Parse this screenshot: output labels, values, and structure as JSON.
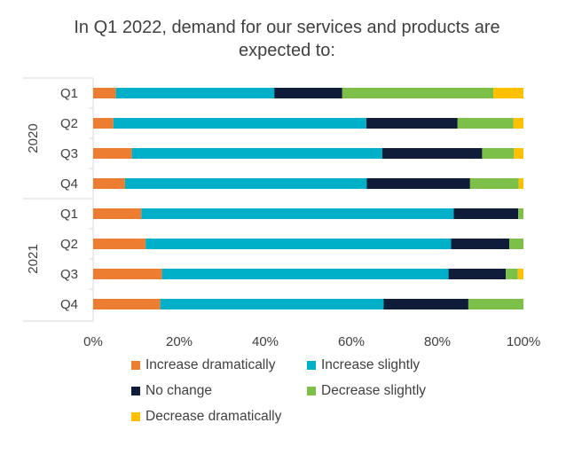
{
  "chart_data": {
    "type": "bar",
    "orientation": "horizontal",
    "stacked": "percent",
    "title": "In Q1 2022, demand for our services and products are expected to:",
    "groups": [
      {
        "name": "2020",
        "categories": [
          "Q1",
          "Q2",
          "Q3",
          "Q4"
        ]
      },
      {
        "name": "2021",
        "categories": [
          "Q1",
          "Q2",
          "Q3",
          "Q4"
        ]
      }
    ],
    "series": [
      {
        "name": "Increase dramatically",
        "color": "#ED7D31",
        "values": [
          5.3,
          4.7,
          9.0,
          7.4,
          11.2,
          12.2,
          16.0,
          15.6
        ]
      },
      {
        "name": "Increase slightly",
        "color": "#00B0C8",
        "values": [
          36.8,
          58.8,
          58.2,
          56.2,
          72.6,
          71.0,
          66.6,
          51.9
        ]
      },
      {
        "name": "No change",
        "color": "#0F1D3A",
        "values": [
          15.8,
          21.2,
          23.2,
          24.0,
          15.0,
          13.5,
          13.3,
          19.7
        ]
      },
      {
        "name": "Decrease slightly",
        "color": "#7CC04A",
        "values": [
          35.1,
          13.0,
          7.4,
          11.3,
          1.2,
          3.3,
          2.8,
          12.8
        ]
      },
      {
        "name": "Decrease dramatically",
        "color": "#FFC000",
        "values": [
          7.0,
          2.3,
          2.2,
          1.1,
          0.0,
          0.0,
          1.3,
          0.0
        ]
      }
    ],
    "xlim": [
      0,
      100
    ],
    "xticks": [
      "0%",
      "20%",
      "40%",
      "60%",
      "80%",
      "100%"
    ],
    "legend_position": "bottom",
    "grid": false
  }
}
